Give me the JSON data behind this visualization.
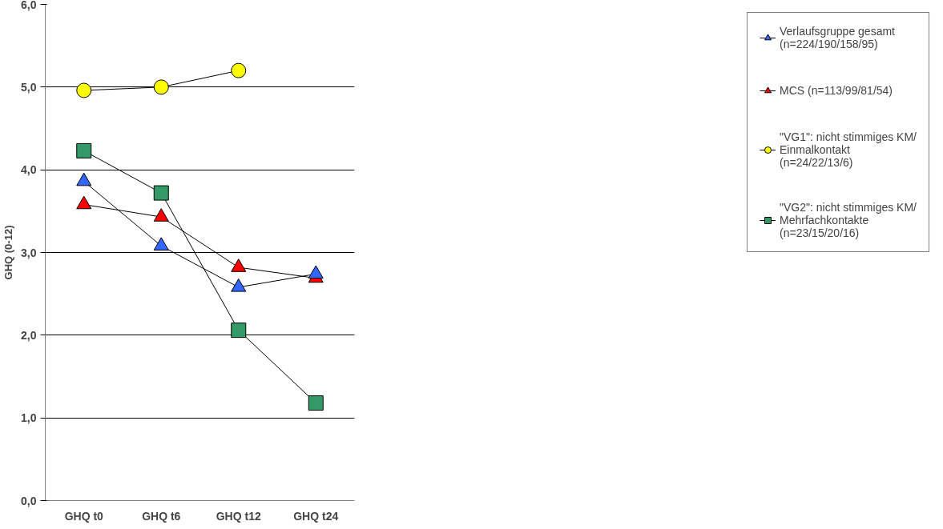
{
  "chart_data": {
    "type": "line",
    "ylabel": "GHQ (0-12)",
    "categories": [
      "GHQ t0",
      "GHQ t6",
      "GHQ t12",
      "GHQ t24"
    ],
    "ylim": [
      0,
      6
    ],
    "yticks": [
      {
        "value": 0,
        "label": "0,0"
      },
      {
        "value": 1,
        "label": "1,0"
      },
      {
        "value": 2,
        "label": "2,0"
      },
      {
        "value": 3,
        "label": "3,0"
      },
      {
        "value": 4,
        "label": "4,0"
      },
      {
        "value": 5,
        "label": "5,0"
      },
      {
        "value": 6,
        "label": "6,0"
      }
    ],
    "grid": "y",
    "legend": "right",
    "series": [
      {
        "name": "Verlaufsgruppe gesamt (n=224/190/158/95)",
        "color": "#3366ff",
        "marker": "triangle",
        "values": [
          3.86,
          3.08,
          2.58,
          2.74
        ]
      },
      {
        "name": "MCS (n=113/99/81/54)",
        "color": "#ff0000",
        "marker": "triangle",
        "values": [
          3.58,
          3.43,
          2.82,
          2.69
        ]
      },
      {
        "name": "\"VG1\": nicht stimmiges KM/ Einmalkontakt (n=24/22/13/6)",
        "color": "#ffff00",
        "marker": "circle",
        "values": [
          4.96,
          5.0,
          5.2,
          null
        ]
      },
      {
        "name": "\"VG2\": nicht stimmiges KM/ Mehrfachkontakte (n=23/15/20/16)",
        "color": "#339966",
        "marker": "square",
        "values": [
          4.23,
          3.72,
          2.06,
          1.18
        ]
      }
    ]
  }
}
